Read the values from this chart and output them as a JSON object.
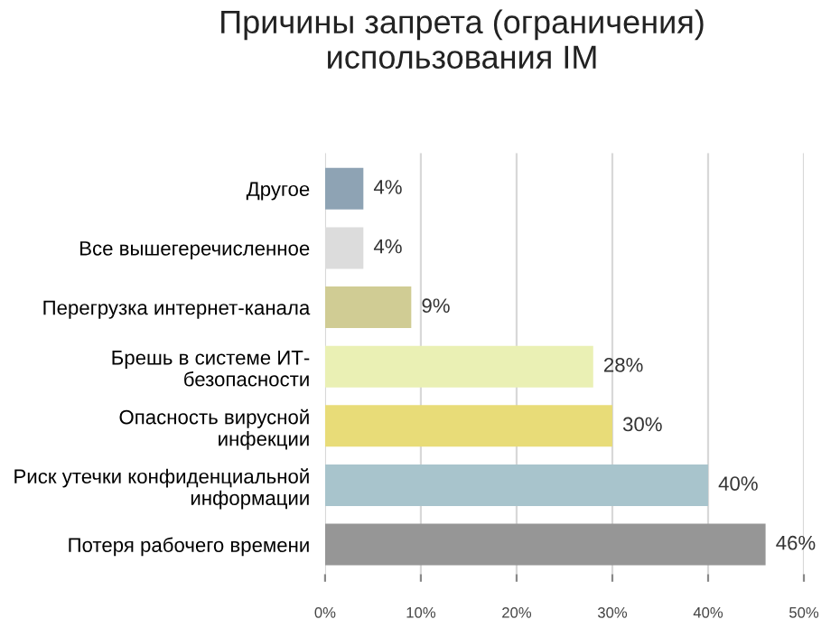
{
  "chart_data": {
    "type": "bar",
    "orientation": "horizontal",
    "title": "Причины запрета (ограничения)\nиспользования IM",
    "categories": [
      "Другое",
      "Все вышегеречисленное",
      "Перегрузка интернет-канала",
      "Брешь в системе ИТ-\nбезопасности",
      "Опасность вирусной\nинфекции",
      "Риск утечки конфиденциальной\nинформации",
      "Потеря рабочего времени"
    ],
    "values": [
      4,
      4,
      9,
      28,
      30,
      40,
      46
    ],
    "colors": [
      "#8ea3b4",
      "#dcdcdc",
      "#d0cc94",
      "#eaf0b4",
      "#e8dc78",
      "#a8c4cc",
      "#969696"
    ],
    "value_labels": [
      "4%",
      "4%",
      "9%",
      "28%",
      "30%",
      "40%",
      "46%"
    ],
    "xlim": [
      0,
      50
    ],
    "xticks": [
      {
        "value": 0,
        "label": "0%"
      },
      {
        "value": 10,
        "label": "10%"
      },
      {
        "value": 20,
        "label": "20%"
      },
      {
        "value": 30,
        "label": "30%"
      },
      {
        "value": 40,
        "label": "40%"
      },
      {
        "value": 50,
        "label": "50%"
      }
    ],
    "grid": "x"
  }
}
